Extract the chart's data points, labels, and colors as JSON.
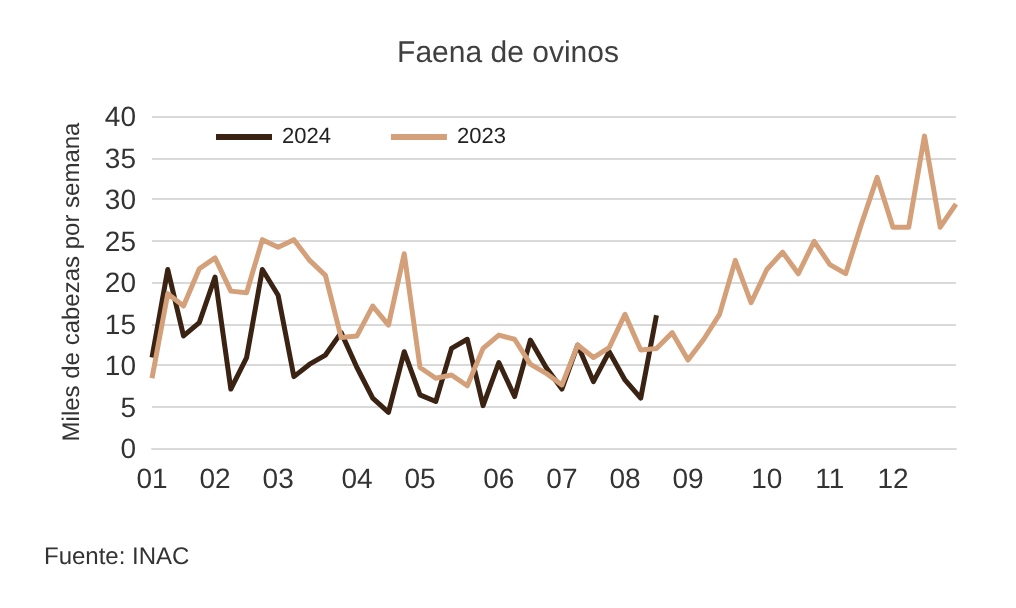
{
  "chart_data": {
    "type": "line",
    "title": "Faena de ovinos",
    "ylabel": "Miles de cabezas por semana",
    "categories": [
      "01",
      null,
      null,
      null,
      "02",
      null,
      null,
      null,
      "03",
      null,
      null,
      null,
      null,
      "04",
      null,
      null,
      null,
      "05",
      null,
      null,
      null,
      null,
      "06",
      null,
      null,
      null,
      "07",
      null,
      null,
      null,
      "08",
      null,
      null,
      null,
      "09",
      null,
      null,
      null,
      null,
      "10",
      null,
      null,
      null,
      "11",
      null,
      null,
      null,
      "12",
      null,
      null,
      null,
      null
    ],
    "series": [
      {
        "name": "2024",
        "color": "#3b2314",
        "values": [
          10.9,
          21.5,
          13.5,
          15.1,
          20.6,
          7.1,
          10.9,
          21.5,
          18.4,
          8.6,
          10.1,
          11.2,
          13.9,
          9.7,
          6.0,
          4.3,
          11.6,
          6.4,
          5.6,
          12.0,
          13.1,
          5.1,
          10.3,
          6.2,
          13.0,
          9.7,
          7.1,
          12.4,
          8.0,
          11.6,
          8.2,
          6.0,
          16.0,
          null,
          null,
          null,
          null,
          null,
          null,
          null,
          null,
          null,
          null,
          null,
          null,
          null,
          null,
          null,
          null,
          null,
          null,
          null
        ]
      },
      {
        "name": "2023",
        "color": "#d4a07a",
        "values": [
          8.4,
          18.6,
          17.1,
          21.6,
          22.9,
          18.9,
          18.7,
          25.1,
          24.2,
          25.1,
          22.6,
          20.8,
          13.3,
          13.5,
          17.1,
          14.8,
          23.4,
          9.7,
          8.4,
          8.8,
          7.5,
          12.0,
          13.6,
          13.1,
          10.1,
          9.0,
          7.6,
          12.4,
          10.9,
          12.1,
          16.1,
          11.8,
          12.0,
          13.9,
          10.6,
          13.1,
          16.1,
          22.6,
          17.5,
          21.5,
          23.6,
          21.0,
          24.9,
          22.1,
          21.0,
          27.0,
          32.6,
          26.6,
          26.6,
          37.6,
          26.6,
          29.4
        ]
      }
    ],
    "ylim": [
      0,
      40
    ],
    "yticks": [
      0,
      5,
      10,
      15,
      20,
      25,
      30,
      35,
      40
    ],
    "grid": "y",
    "legend": "top left",
    "marker": "none",
    "line_style": "solid",
    "annotations": [
      "Fuente: INAC"
    ]
  }
}
